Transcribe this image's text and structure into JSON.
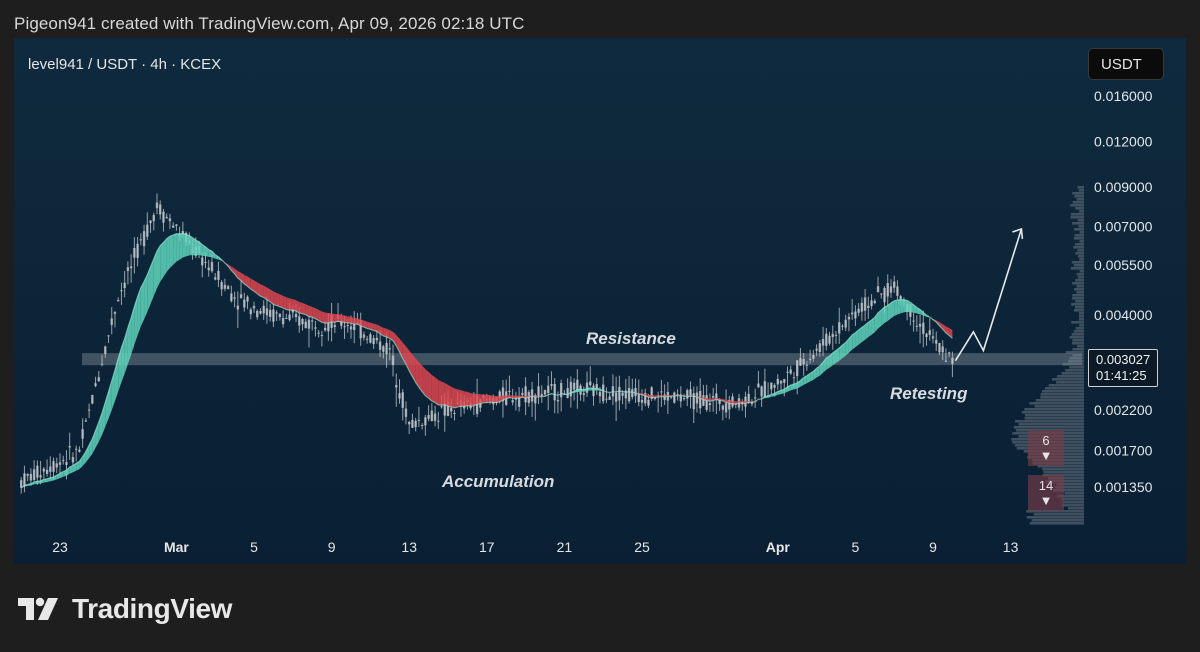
{
  "header": {
    "credit": "Pigeon941 created with TradingView.com, Apr 09, 2026 02:18 UTC"
  },
  "chart": {
    "symbol_title": "level941 / USDT · 4h · KCEX",
    "currency_button": "USDT",
    "price_label": "0.003027",
    "countdown": "01:41:25",
    "badges": [
      {
        "count": "6",
        "arrow": "▼"
      },
      {
        "count": "14",
        "arrow": "▼"
      }
    ],
    "annotations": {
      "resistance": "Resistance",
      "accumulation": "Accumulation",
      "retesting": "Retesting"
    }
  },
  "footer": {
    "brand": "TradingView"
  },
  "colors": {
    "background": "#1e1e1e",
    "plot_background": "#0c2438",
    "bull_ribbon": "#5fd6bd",
    "bear_ribbon": "#e0464f",
    "cloud_fill": "#6b3440",
    "candles": "#c8ccd0",
    "resistance_band": "#ffffff"
  },
  "chart_data": {
    "type": "line",
    "scale": "log",
    "y_ticks": [
      "0.016000",
      "0.012000",
      "0.009000",
      "0.007000",
      "0.005500",
      "0.004000",
      "0.002200",
      "0.001700",
      "0.001350"
    ],
    "x_ticks": [
      "23",
      "Mar",
      "5",
      "9",
      "13",
      "17",
      "21",
      "25",
      "Apr",
      "5",
      "9",
      "13"
    ],
    "resistance_level": 0.00303,
    "current_price": 0.003027,
    "price_path": {
      "x": [
        "Feb 21",
        "Feb 24",
        "Feb 26",
        "Feb 28",
        "Mar 1",
        "Mar 3",
        "Mar 5",
        "Mar 7",
        "Mar 9",
        "Mar 11",
        "Mar 12",
        "Mar 14",
        "Mar 17",
        "Mar 21",
        "Mar 25",
        "Mar 29",
        "Mar 31",
        "Apr 2",
        "Apr 4",
        "Apr 6",
        "Apr 7",
        "Apr 8",
        "Apr 9"
      ],
      "y": [
        0.0014,
        0.0017,
        0.0045,
        0.008,
        0.006,
        0.0045,
        0.004,
        0.0038,
        0.0038,
        0.0032,
        0.002,
        0.0022,
        0.0024,
        0.0025,
        0.0024,
        0.0023,
        0.0026,
        0.0032,
        0.0041,
        0.0048,
        0.004,
        0.0034,
        0.003
      ]
    },
    "projection": {
      "from": 0.003,
      "to": 0.0069
    }
  }
}
